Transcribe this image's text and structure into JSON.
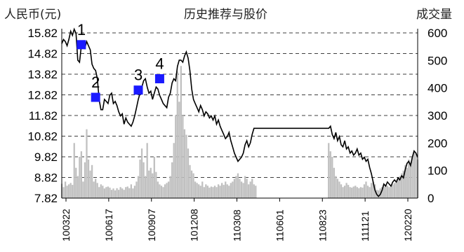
{
  "chart_data": {
    "type": "line",
    "title": "历史推荐与股价",
    "left_axis_label": "人民币(元)",
    "right_axis_label": "成交量",
    "y_left": {
      "ticks": [
        "15.82",
        "14.82",
        "13.82",
        "12.82",
        "11.82",
        "10.82",
        "9.82",
        "8.82",
        "7.82"
      ],
      "range": [
        7.82,
        15.82
      ]
    },
    "y_right": {
      "ticks": [
        "600",
        "500",
        "400",
        "300",
        "200",
        "100",
        "0"
      ],
      "range": [
        0,
        600
      ]
    },
    "x_ticks": [
      "100322",
      "100617",
      "100907",
      "101208",
      "110308",
      "110601",
      "110823",
      "111121",
      "120220"
    ],
    "grid": "dashed-horizontal",
    "colors": {
      "price_line": "#000000",
      "volume_bars": "#c0c0c0",
      "markers": "#1a1aff"
    },
    "price_series": [
      [
        0,
        15.3
      ],
      [
        2,
        15.5
      ],
      [
        4,
        15.4
      ],
      [
        6,
        15.2
      ],
      [
        8,
        15.5
      ],
      [
        10,
        15.9
      ],
      [
        12,
        15.7
      ],
      [
        14,
        16.0
      ],
      [
        16,
        15.8
      ],
      [
        18,
        14.5
      ],
      [
        20,
        14.4
      ],
      [
        22,
        15.2
      ],
      [
        24,
        15.4
      ],
      [
        26,
        15.1
      ],
      [
        28,
        15.4
      ],
      [
        30,
        15.2
      ],
      [
        32,
        15.0
      ],
      [
        34,
        14.3
      ],
      [
        36,
        14.1
      ],
      [
        38,
        14.0
      ],
      [
        40,
        13.6
      ],
      [
        42,
        12.6
      ],
      [
        44,
        12.1
      ],
      [
        46,
        12.1
      ],
      [
        48,
        12.6
      ],
      [
        50,
        12.5
      ],
      [
        52,
        12.4
      ],
      [
        54,
        12.8
      ],
      [
        56,
        12.9
      ],
      [
        58,
        12.4
      ],
      [
        60,
        12.5
      ],
      [
        62,
        12.3
      ],
      [
        64,
        12.0
      ],
      [
        66,
        11.8
      ],
      [
        68,
        11.9
      ],
      [
        70,
        11.4
      ],
      [
        72,
        11.7
      ],
      [
        74,
        11.5
      ],
      [
        76,
        11.4
      ],
      [
        78,
        11.3
      ],
      [
        80,
        11.5
      ],
      [
        82,
        11.8
      ],
      [
        84,
        12.2
      ],
      [
        86,
        12.6
      ],
      [
        88,
        12.9
      ],
      [
        90,
        13.2
      ],
      [
        92,
        13.5
      ],
      [
        94,
        13.6
      ],
      [
        96,
        13.2
      ],
      [
        98,
        12.9
      ],
      [
        100,
        13.0
      ],
      [
        102,
        12.6
      ],
      [
        104,
        12.9
      ],
      [
        106,
        13.2
      ],
      [
        108,
        13.1
      ],
      [
        110,
        12.8
      ],
      [
        112,
        12.6
      ],
      [
        114,
        12.4
      ],
      [
        116,
        12.3
      ],
      [
        118,
        12.2
      ],
      [
        120,
        12.7
      ],
      [
        122,
        12.9
      ],
      [
        124,
        13.4
      ],
      [
        126,
        13.6
      ],
      [
        128,
        13.5
      ],
      [
        130,
        14.2
      ],
      [
        132,
        14.5
      ],
      [
        134,
        14.5
      ],
      [
        136,
        14.4
      ],
      [
        138,
        14.7
      ],
      [
        140,
        14.9
      ],
      [
        142,
        14.6
      ],
      [
        144,
        14.0
      ],
      [
        146,
        13.1
      ],
      [
        148,
        12.6
      ],
      [
        150,
        12.4
      ],
      [
        152,
        12.2
      ],
      [
        154,
        12.0
      ],
      [
        156,
        12.3
      ],
      [
        158,
        12.1
      ],
      [
        160,
        11.8
      ],
      [
        162,
        12.0
      ],
      [
        164,
        11.9
      ],
      [
        166,
        11.7
      ],
      [
        168,
        11.8
      ],
      [
        170,
        11.6
      ],
      [
        172,
        11.8
      ],
      [
        174,
        11.4
      ],
      [
        176,
        11.6
      ],
      [
        178,
        11.3
      ],
      [
        180,
        11.1
      ],
      [
        182,
        10.9
      ],
      [
        184,
        10.7
      ],
      [
        186,
        10.8
      ],
      [
        188,
        11.0
      ],
      [
        190,
        10.6
      ],
      [
        192,
        10.3
      ],
      [
        194,
        10.0
      ],
      [
        196,
        9.8
      ],
      [
        198,
        9.6
      ],
      [
        200,
        9.7
      ],
      [
        202,
        9.8
      ],
      [
        204,
        10.0
      ],
      [
        206,
        10.4
      ],
      [
        208,
        10.6
      ],
      [
        210,
        10.3
      ],
      [
        212,
        10.5
      ],
      [
        214,
        10.9
      ],
      [
        216,
        11.2
      ],
      [
        218,
        11.2
      ],
      [
        300,
        11.2
      ],
      [
        302,
        11.3
      ],
      [
        304,
        10.9
      ],
      [
        306,
        10.7
      ],
      [
        308,
        11.0
      ],
      [
        310,
        10.6
      ],
      [
        312,
        10.8
      ],
      [
        314,
        10.4
      ],
      [
        316,
        10.3
      ],
      [
        318,
        10.6
      ],
      [
        320,
        10.2
      ],
      [
        322,
        10.3
      ],
      [
        324,
        10.0
      ],
      [
        326,
        10.1
      ],
      [
        328,
        9.9
      ],
      [
        330,
        10.0
      ],
      [
        332,
        10.2
      ],
      [
        334,
        9.9
      ],
      [
        336,
        10.0
      ],
      [
        338,
        9.7
      ],
      [
        340,
        9.8
      ],
      [
        342,
        9.6
      ],
      [
        344,
        9.7
      ],
      [
        346,
        9.3
      ],
      [
        348,
        9.0
      ],
      [
        350,
        8.6
      ],
      [
        352,
        8.2
      ],
      [
        354,
        8.0
      ],
      [
        356,
        7.9
      ],
      [
        358,
        8.0
      ],
      [
        360,
        8.2
      ],
      [
        362,
        8.5
      ],
      [
        364,
        8.4
      ],
      [
        366,
        8.6
      ],
      [
        368,
        8.5
      ],
      [
        370,
        8.4
      ],
      [
        372,
        8.6
      ],
      [
        374,
        8.7
      ],
      [
        376,
        8.6
      ],
      [
        378,
        8.8
      ],
      [
        380,
        8.7
      ],
      [
        382,
        8.9
      ],
      [
        384,
        8.8
      ],
      [
        386,
        9.2
      ],
      [
        388,
        9.5
      ],
      [
        390,
        9.6
      ],
      [
        392,
        9.4
      ],
      [
        394,
        9.8
      ],
      [
        396,
        10.1
      ],
      [
        398,
        10.0
      ],
      [
        400,
        9.8
      ]
    ],
    "volume_series": [
      [
        0,
        52
      ],
      [
        2,
        40
      ],
      [
        4,
        60
      ],
      [
        6,
        45
      ],
      [
        8,
        50
      ],
      [
        10,
        55
      ],
      [
        12,
        48
      ],
      [
        14,
        200
      ],
      [
        16,
        110
      ],
      [
        18,
        80
      ],
      [
        20,
        150
      ],
      [
        22,
        170
      ],
      [
        24,
        60
      ],
      [
        26,
        130
      ],
      [
        28,
        250
      ],
      [
        30,
        140
      ],
      [
        32,
        100
      ],
      [
        34,
        120
      ],
      [
        36,
        60
      ],
      [
        38,
        70
      ],
      [
        40,
        55
      ],
      [
        42,
        40
      ],
      [
        44,
        50
      ],
      [
        46,
        45
      ],
      [
        48,
        35
      ],
      [
        50,
        40
      ],
      [
        52,
        42
      ],
      [
        54,
        38
      ],
      [
        56,
        30
      ],
      [
        58,
        35
      ],
      [
        60,
        28
      ],
      [
        62,
        36
      ],
      [
        64,
        30
      ],
      [
        66,
        40
      ],
      [
        68,
        35
      ],
      [
        70,
        30
      ],
      [
        72,
        40
      ],
      [
        74,
        42
      ],
      [
        76,
        36
      ],
      [
        78,
        50
      ],
      [
        80,
        35
      ],
      [
        82,
        45
      ],
      [
        84,
        60
      ],
      [
        86,
        80
      ],
      [
        88,
        140
      ],
      [
        90,
        180
      ],
      [
        92,
        130
      ],
      [
        94,
        80
      ],
      [
        96,
        200
      ],
      [
        98,
        100
      ],
      [
        100,
        110
      ],
      [
        102,
        90
      ],
      [
        104,
        150
      ],
      [
        106,
        95
      ],
      [
        108,
        60
      ],
      [
        110,
        50
      ],
      [
        112,
        45
      ],
      [
        114,
        40
      ],
      [
        116,
        50
      ],
      [
        118,
        55
      ],
      [
        120,
        60
      ],
      [
        122,
        80
      ],
      [
        124,
        130
      ],
      [
        126,
        200
      ],
      [
        128,
        300
      ],
      [
        130,
        460
      ],
      [
        132,
        350
      ],
      [
        134,
        480
      ],
      [
        136,
        300
      ],
      [
        138,
        250
      ],
      [
        140,
        230
      ],
      [
        142,
        180
      ],
      [
        144,
        120
      ],
      [
        146,
        100
      ],
      [
        148,
        90
      ],
      [
        150,
        60
      ],
      [
        152,
        55
      ],
      [
        154,
        50
      ],
      [
        156,
        45
      ],
      [
        158,
        60
      ],
      [
        160,
        40
      ],
      [
        162,
        50
      ],
      [
        164,
        45
      ],
      [
        166,
        38
      ],
      [
        168,
        42
      ],
      [
        170,
        40
      ],
      [
        172,
        45
      ],
      [
        174,
        40
      ],
      [
        176,
        50
      ],
      [
        178,
        45
      ],
      [
        180,
        55
      ],
      [
        182,
        48
      ],
      [
        184,
        60
      ],
      [
        186,
        50
      ],
      [
        188,
        45
      ],
      [
        190,
        55
      ],
      [
        192,
        60
      ],
      [
        194,
        70
      ],
      [
        196,
        80
      ],
      [
        198,
        90
      ],
      [
        200,
        70
      ],
      [
        202,
        60
      ],
      [
        204,
        55
      ],
      [
        206,
        80
      ],
      [
        208,
        70
      ],
      [
        210,
        50
      ],
      [
        212,
        60
      ],
      [
        214,
        70
      ],
      [
        216,
        50
      ],
      [
        218,
        45
      ],
      [
        300,
        200
      ],
      [
        302,
        170
      ],
      [
        304,
        150
      ],
      [
        306,
        110
      ],
      [
        308,
        80
      ],
      [
        310,
        70
      ],
      [
        312,
        60
      ],
      [
        314,
        50
      ],
      [
        316,
        40
      ],
      [
        318,
        45
      ],
      [
        320,
        55
      ],
      [
        322,
        48
      ],
      [
        324,
        40
      ],
      [
        326,
        38
      ],
      [
        328,
        42
      ],
      [
        330,
        45
      ],
      [
        332,
        40
      ],
      [
        334,
        36
      ],
      [
        336,
        40
      ],
      [
        338,
        38
      ],
      [
        340,
        50
      ],
      [
        342,
        60
      ],
      [
        344,
        45
      ],
      [
        346,
        40
      ],
      [
        348,
        55
      ],
      [
        350,
        60
      ],
      [
        352,
        50
      ],
      [
        354,
        30
      ],
      [
        356,
        28
      ],
      [
        358,
        35
      ],
      [
        360,
        40
      ],
      [
        362,
        42
      ],
      [
        364,
        50
      ],
      [
        366,
        45
      ],
      [
        368,
        40
      ],
      [
        370,
        45
      ],
      [
        372,
        50
      ],
      [
        374,
        55
      ],
      [
        376,
        60
      ],
      [
        378,
        70
      ],
      [
        380,
        80
      ],
      [
        382,
        90
      ],
      [
        384,
        100
      ],
      [
        386,
        120
      ],
      [
        388,
        110
      ],
      [
        390,
        140
      ],
      [
        392,
        130
      ],
      [
        394,
        150
      ],
      [
        396,
        170
      ],
      [
        398,
        160
      ],
      [
        400,
        140
      ]
    ],
    "markers": [
      {
        "label": "1",
        "x": 22,
        "price": 15.25
      },
      {
        "label": "2",
        "x": 38,
        "price": 12.7
      },
      {
        "label": "3",
        "x": 86,
        "price": 13.05
      },
      {
        "label": "4",
        "x": 110,
        "price": 13.6
      }
    ]
  }
}
